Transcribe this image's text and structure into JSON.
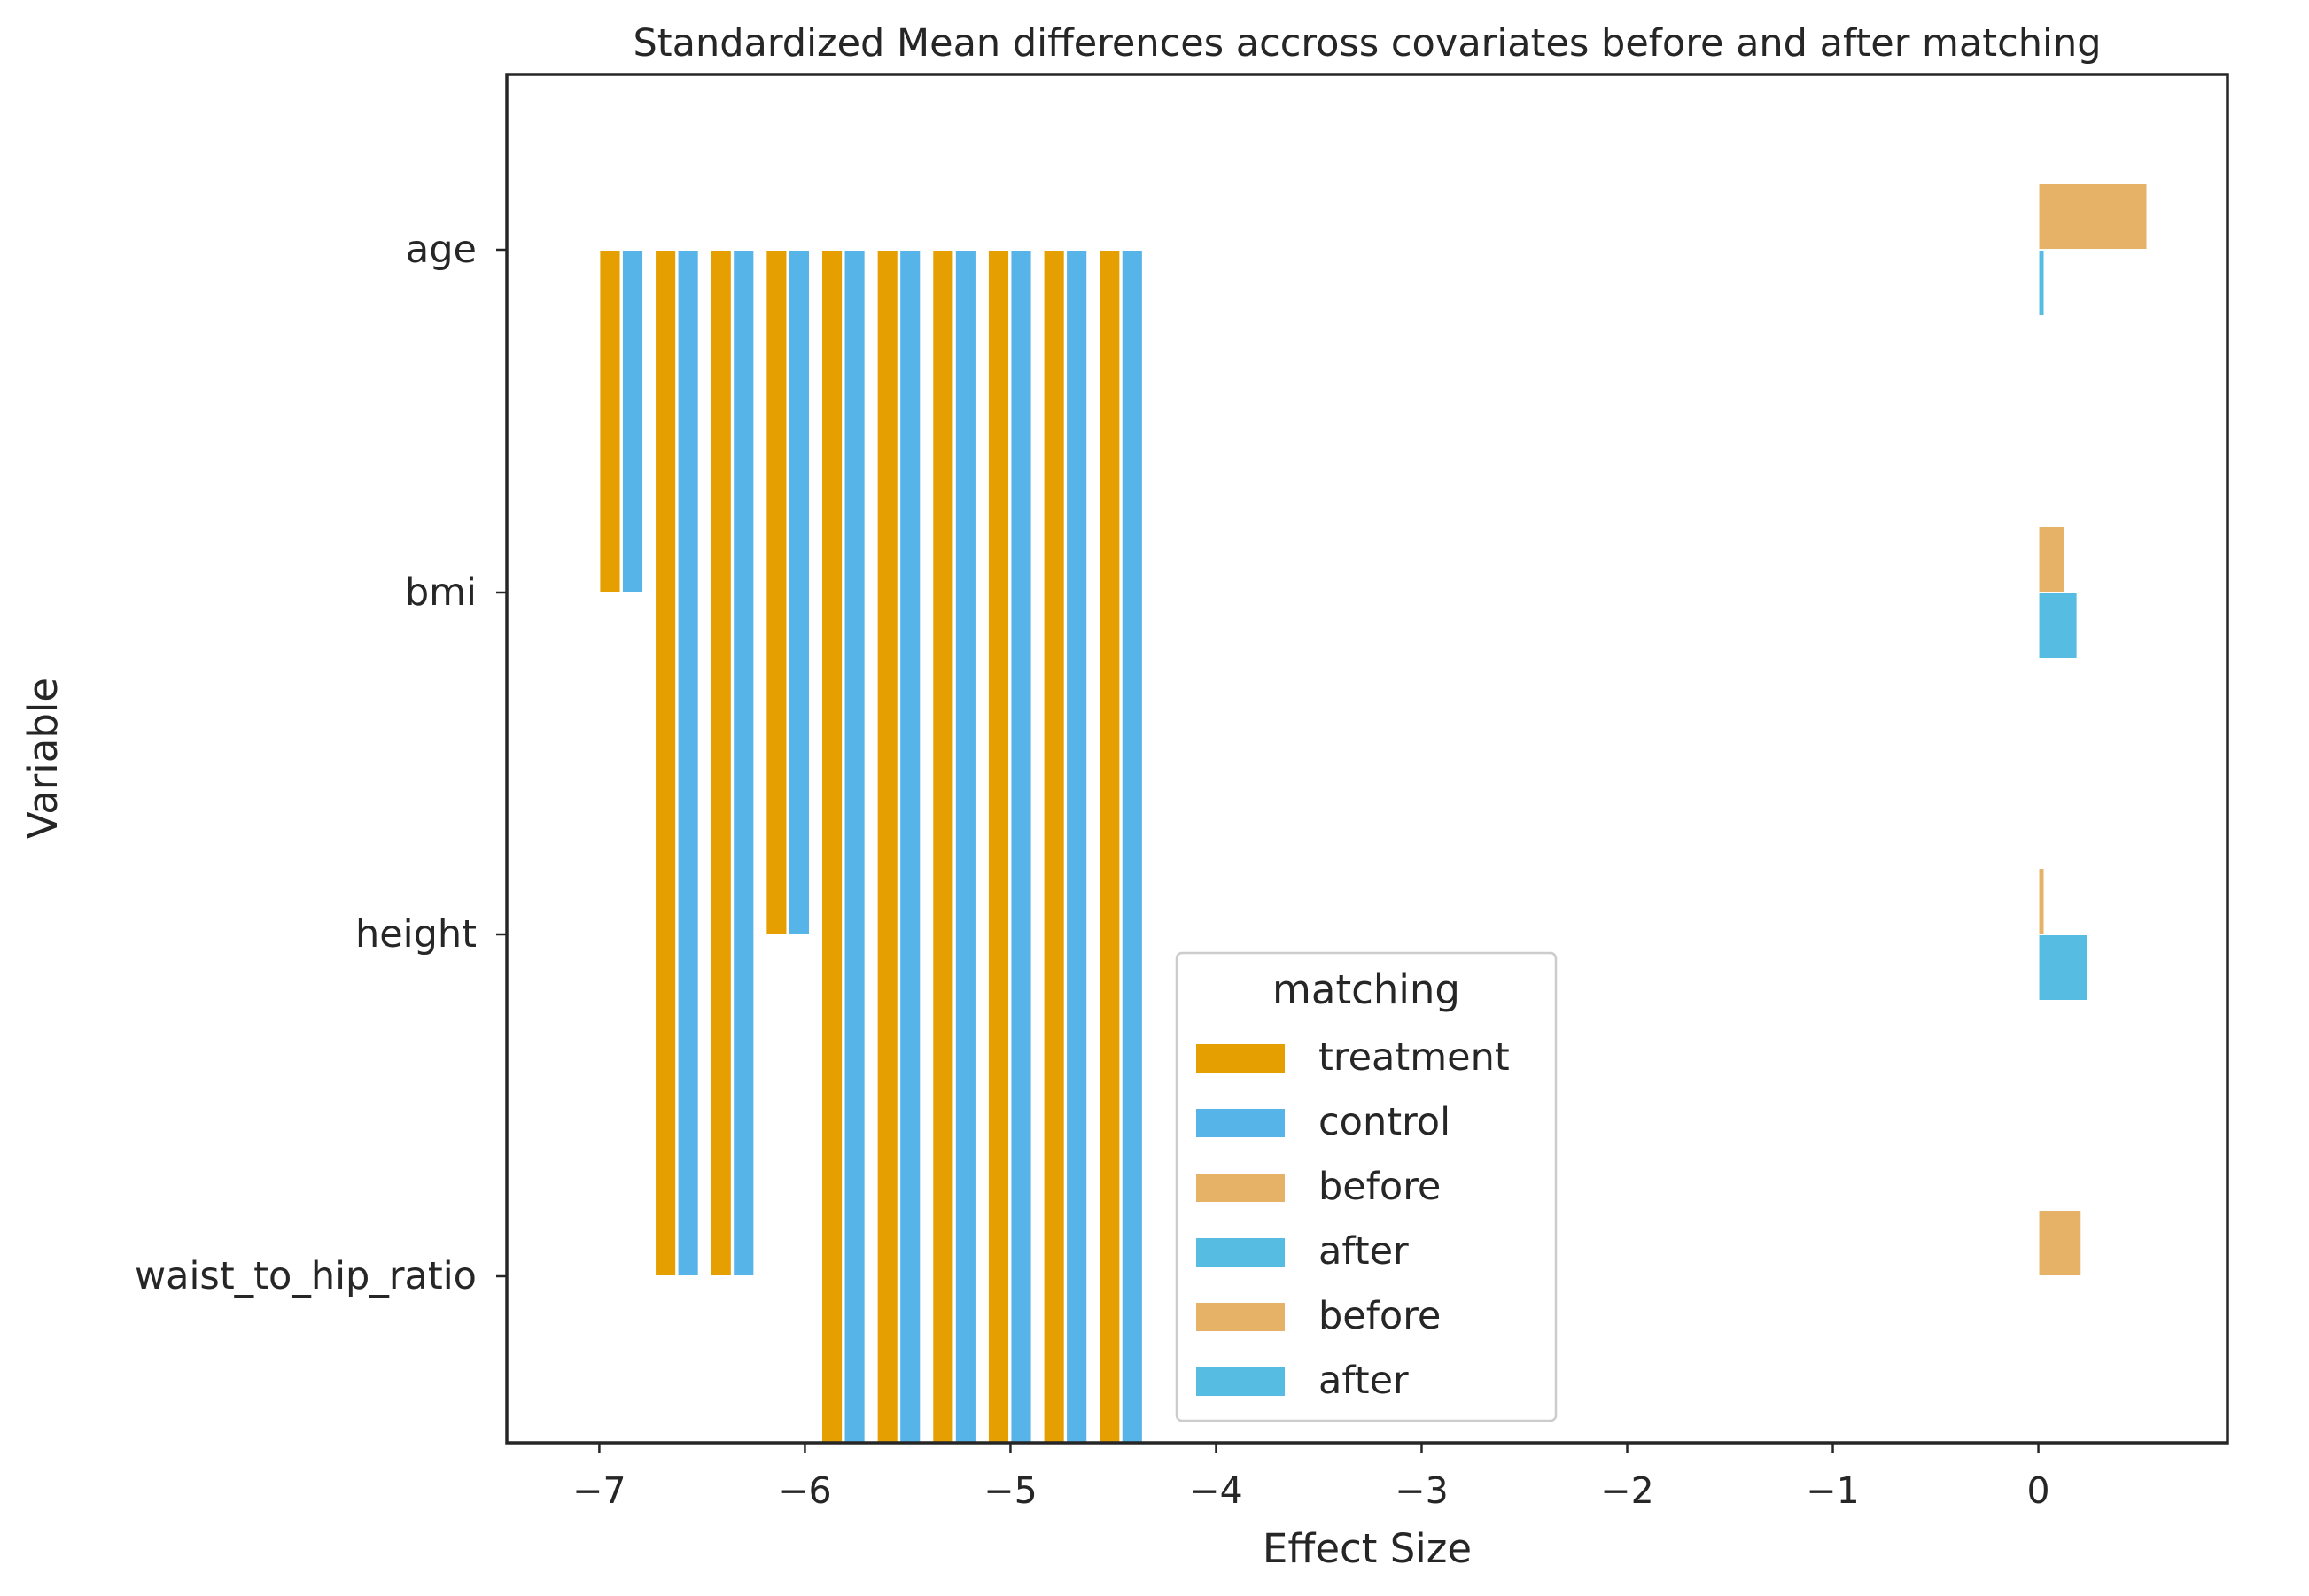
{
  "chart_data": {
    "type": "bar",
    "orientation": "horizontal",
    "title": "Standardized Mean differences accross covariates before and after matching",
    "xlabel": "Effect Size",
    "ylabel": "Variable",
    "xlim": [
      -7.45,
      0.92
    ],
    "xticks": [
      -7,
      -6,
      -5,
      -4,
      -3,
      -2,
      -1,
      0
    ],
    "xtick_labels": [
      "−7",
      "−6",
      "−5",
      "−4",
      "−3",
      "−2",
      "−1",
      "0"
    ],
    "categories": [
      "age",
      "bmi",
      "height",
      "waist_to_hip_ratio"
    ],
    "grid": false,
    "legend": {
      "title": "matching",
      "placement": "lower center",
      "entries": [
        {
          "label": "treatment",
          "color": "#E69F00"
        },
        {
          "label": "control",
          "color": "#56B4E9"
        },
        {
          "label": "before",
          "color": "#E6B267"
        },
        {
          "label": "after",
          "color": "#57BCE2"
        },
        {
          "label": "before",
          "color": "#E6B267"
        },
        {
          "label": "after",
          "color": "#57BCE2"
        }
      ]
    },
    "series": [
      {
        "name": "treatment",
        "color": "#E69F00",
        "bars": [
          {
            "value": -7.0,
            "from": "age",
            "to": "bmi"
          },
          {
            "value": -6.73,
            "from": "age",
            "to": "waist_to_hip_ratio"
          },
          {
            "value": -6.46,
            "from": "age",
            "to": "waist_to_hip_ratio"
          },
          {
            "value": -6.19,
            "from": "age",
            "to": "height"
          },
          {
            "value": -5.92,
            "from": "age",
            "to": "bottom"
          },
          {
            "value": -5.65,
            "from": "age",
            "to": "bottom"
          },
          {
            "value": -5.38,
            "from": "age",
            "to": "bottom"
          },
          {
            "value": -5.11,
            "from": "age",
            "to": "bottom"
          },
          {
            "value": -4.84,
            "from": "age",
            "to": "bottom"
          },
          {
            "value": -4.57,
            "from": "age",
            "to": "bottom"
          }
        ]
      },
      {
        "name": "control",
        "color": "#56B4E9",
        "bars": [
          {
            "value": -6.89,
            "from": "age",
            "to": "bmi"
          },
          {
            "value": -6.62,
            "from": "age",
            "to": "waist_to_hip_ratio"
          },
          {
            "value": -6.35,
            "from": "age",
            "to": "waist_to_hip_ratio"
          },
          {
            "value": -6.08,
            "from": "age",
            "to": "height"
          },
          {
            "value": -5.81,
            "from": "age",
            "to": "bottom"
          },
          {
            "value": -5.54,
            "from": "age",
            "to": "bottom"
          },
          {
            "value": -5.27,
            "from": "age",
            "to": "bottom"
          },
          {
            "value": -5.0,
            "from": "age",
            "to": "bottom"
          },
          {
            "value": -4.73,
            "from": "age",
            "to": "bottom"
          },
          {
            "value": -4.46,
            "from": "age",
            "to": "bottom"
          }
        ]
      },
      {
        "name": "before",
        "color": "#E6B267",
        "values": [
          0.53,
          0.13,
          0.03,
          0.21
        ]
      },
      {
        "name": "after",
        "color": "#57BCE2",
        "values": [
          0.03,
          0.19,
          0.24,
          null
        ]
      }
    ]
  }
}
